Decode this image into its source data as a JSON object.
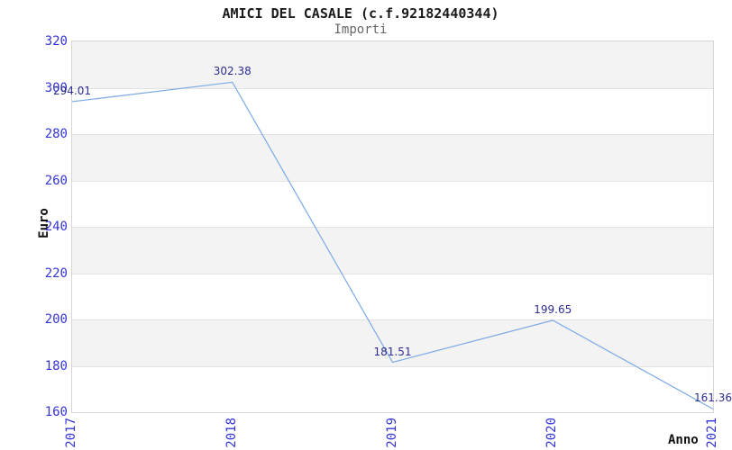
{
  "header": {
    "title": "AMICI DEL CASALE (c.f.92182440344)",
    "subtitle": "Importi"
  },
  "chart_data": {
    "type": "line",
    "title": "AMICI DEL CASALE (c.f.92182440344)",
    "subtitle": "Importi",
    "xlabel": "Anno",
    "ylabel": "Euro",
    "categories": [
      "2017",
      "2018",
      "2019",
      "2020",
      "2021"
    ],
    "series": [
      {
        "name": "Importi",
        "values": [
          294.01,
          302.38,
          181.51,
          199.65,
          161.36
        ]
      }
    ],
    "data_labels": [
      "294.01",
      "302.38",
      "181.51",
      "199.65",
      "161.36"
    ],
    "ylim": [
      160,
      320
    ],
    "ytick_step": 20,
    "yticks": [
      320,
      300,
      280,
      260,
      240,
      220,
      200,
      180,
      160
    ],
    "grid": "horizontal-alternating-bands",
    "legend": "none",
    "colors": {
      "line": "#7aa9e6",
      "data_label": "#2d2d91",
      "tick_label": "#3434d6",
      "band_gray": "#f3f3f3",
      "band_white": "#ffffff",
      "gridline": "#e3e3e3",
      "plot_border": "#d6d6d6",
      "title": "#1a1a1a",
      "subtitle": "#666666",
      "axis_label": "#111111"
    }
  }
}
